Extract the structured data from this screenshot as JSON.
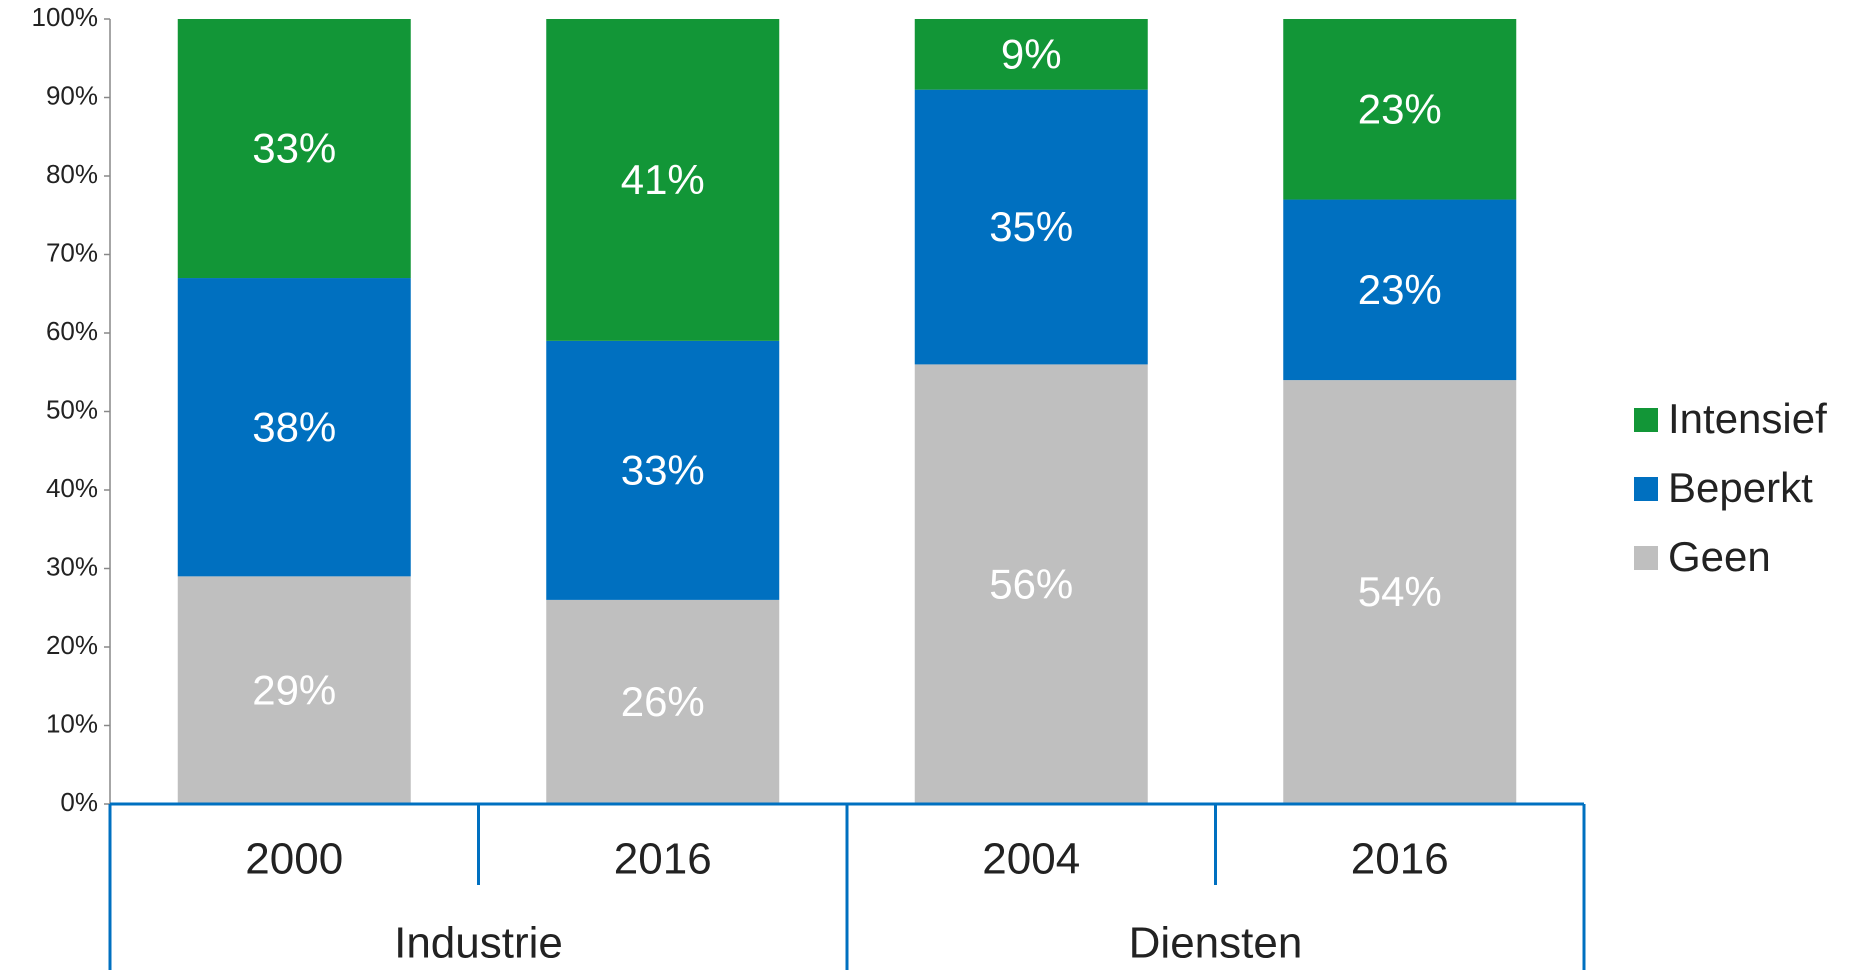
{
  "chart_data": {
    "type": "stacked_bar",
    "categories": [
      "2000",
      "2016",
      "2004",
      "2016"
    ],
    "groups": [
      "Industrie",
      "Diensten"
    ],
    "series": [
      {
        "name": "Geen",
        "color": "#bfbfbf",
        "values": [
          29,
          26,
          56,
          54
        ],
        "value_labels": [
          "29%",
          "26%",
          "56%",
          "54%"
        ]
      },
      {
        "name": "Beperkt",
        "color": "#0070c0",
        "values": [
          38,
          33,
          35,
          23
        ],
        "value_labels": [
          "38%",
          "33%",
          "35%",
          "23%"
        ]
      },
      {
        "name": "Intensief",
        "color": "#129637",
        "values": [
          33,
          41,
          9,
          23
        ],
        "value_labels": [
          "33%",
          "41%",
          "9%",
          "23%"
        ]
      }
    ],
    "ylim": [
      0,
      100
    ],
    "yticks": [
      {
        "value": 0,
        "label": "0%"
      },
      {
        "value": 10,
        "label": "10%"
      },
      {
        "value": 20,
        "label": "20%"
      },
      {
        "value": 30,
        "label": "30%"
      },
      {
        "value": 40,
        "label": "40%"
      },
      {
        "value": 50,
        "label": "50%"
      },
      {
        "value": 60,
        "label": "60%"
      },
      {
        "value": 70,
        "label": "70%"
      },
      {
        "value": 80,
        "label": "80%"
      },
      {
        "value": 90,
        "label": "90%"
      },
      {
        "value": 100,
        "label": "100%"
      }
    ],
    "legend": "right"
  }
}
